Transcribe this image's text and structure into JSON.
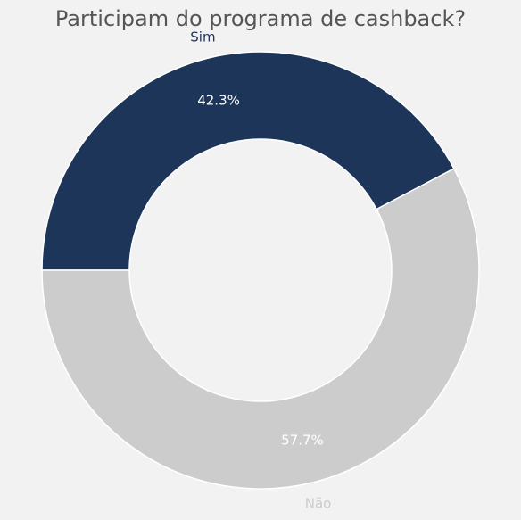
{
  "chart_data": {
    "type": "pie",
    "title": "Participam do programa de cashback?",
    "categories": [
      "Sim",
      "Não"
    ],
    "values": [
      42.3,
      57.7
    ],
    "value_labels": [
      "42.3%",
      "57.7%"
    ],
    "colors": [
      "#1c3558",
      "#cccccc"
    ],
    "label_colors": [
      "#1c3558",
      "#cccccc"
    ],
    "background": "#f2f2f2",
    "legend": "none"
  }
}
